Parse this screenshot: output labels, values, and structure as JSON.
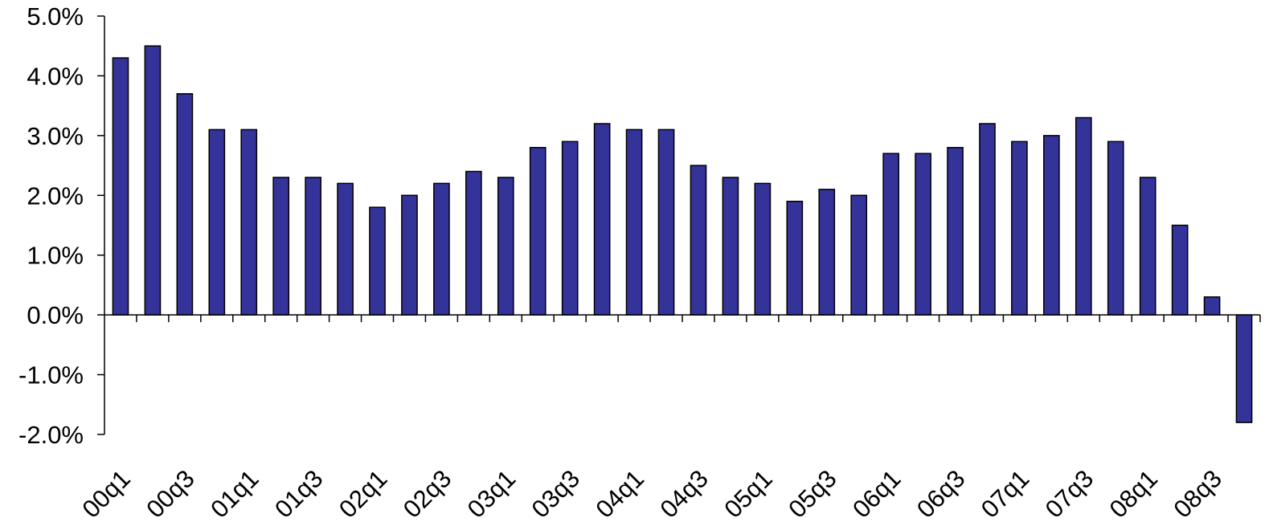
{
  "chart_data": {
    "type": "bar",
    "title": "",
    "xlabel": "",
    "ylabel": "",
    "ylim": [
      -2.0,
      5.0
    ],
    "grid": false,
    "bar_color": "#333399",
    "y_ticks": [
      "-2.0%",
      "-1.0%",
      "0.0%",
      "1.0%",
      "2.0%",
      "3.0%",
      "4.0%",
      "5.0%"
    ],
    "x_tick_labels": [
      "00q1",
      "00q3",
      "01q1",
      "01q3",
      "02q1",
      "02q3",
      "03q1",
      "03q3",
      "04q1",
      "04q3",
      "05q1",
      "05q3",
      "06q1",
      "06q3",
      "07q1",
      "07q3",
      "08q1",
      "08q3"
    ],
    "categories": [
      "00q1",
      "00q2",
      "00q3",
      "00q4",
      "01q1",
      "01q2",
      "01q3",
      "01q4",
      "02q1",
      "02q2",
      "02q3",
      "02q4",
      "03q1",
      "03q2",
      "03q3",
      "03q4",
      "04q1",
      "04q2",
      "04q3",
      "04q4",
      "05q1",
      "05q2",
      "05q3",
      "05q4",
      "06q1",
      "06q2",
      "06q3",
      "06q4",
      "07q1",
      "07q2",
      "07q3",
      "07q4",
      "08q1",
      "08q2",
      "08q3",
      "08q4"
    ],
    "values": [
      4.3,
      4.5,
      3.7,
      3.1,
      3.1,
      2.3,
      2.3,
      2.2,
      1.8,
      2.0,
      2.2,
      2.4,
      2.3,
      2.8,
      2.9,
      3.2,
      3.1,
      3.1,
      2.5,
      2.3,
      2.2,
      1.9,
      2.1,
      2.0,
      2.7,
      2.7,
      2.8,
      3.2,
      2.9,
      3.0,
      3.3,
      2.9,
      2.3,
      1.5,
      0.3,
      -1.8
    ]
  }
}
